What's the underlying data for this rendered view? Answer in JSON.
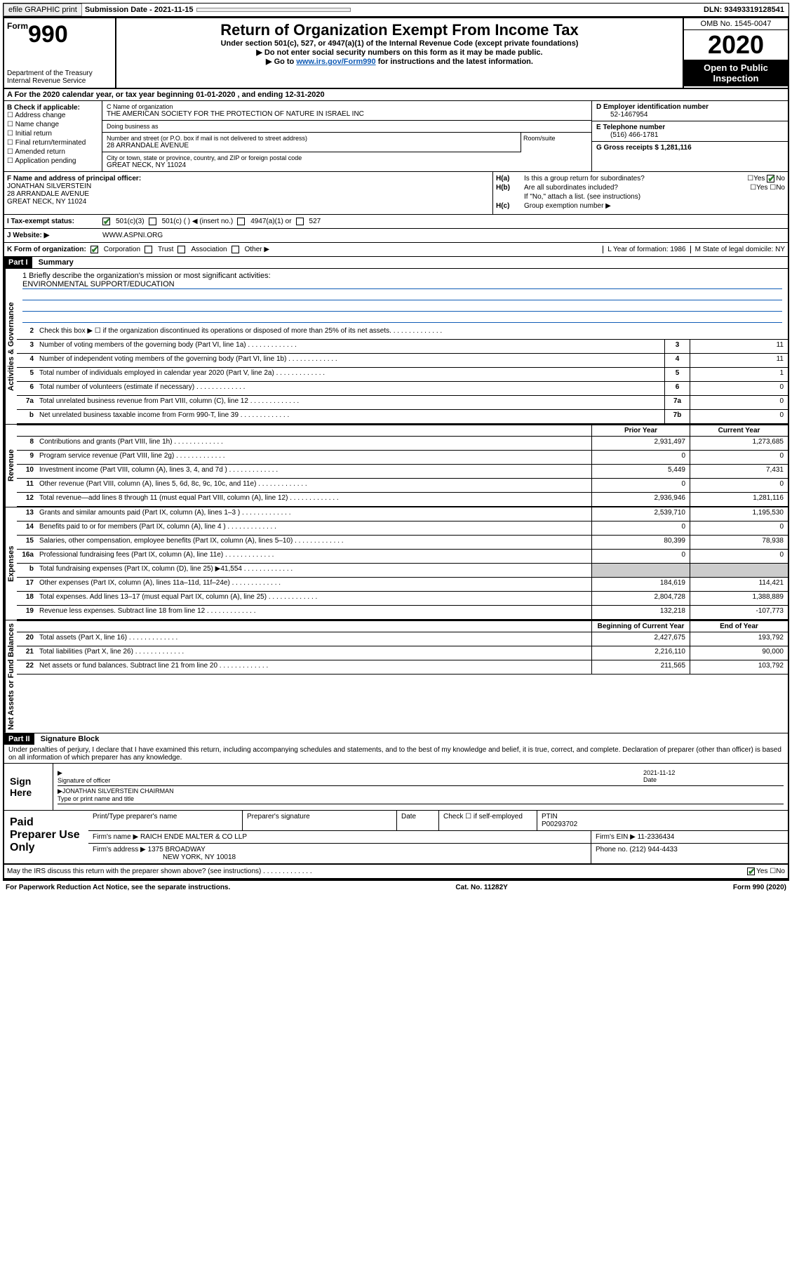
{
  "topbar": {
    "efile_label": "efile GRAPHIC print",
    "submission_label": "Submission Date - 2021-11-15",
    "dln": "DLN: 93493319128541"
  },
  "header": {
    "form_prefix": "Form",
    "form_number": "990",
    "dept": "Department of the Treasury\nInternal Revenue Service",
    "title": "Return of Organization Exempt From Income Tax",
    "subtitle": "Under section 501(c), 527, or 4947(a)(1) of the Internal Revenue Code (except private foundations)",
    "arrow1": "▶ Do not enter social security numbers on this form as it may be made public.",
    "arrow2_pre": "▶ Go to ",
    "arrow2_link": "www.irs.gov/Form990",
    "arrow2_post": " for instructions and the latest information.",
    "omb": "OMB No. 1545-0047",
    "year": "2020",
    "open_public": "Open to Public Inspection"
  },
  "row_a": "A For the 2020 calendar year, or tax year beginning 01-01-2020    , and ending 12-31-2020",
  "col_b": {
    "title": "B Check if applicable:",
    "items": [
      "Address change",
      "Name change",
      "Initial return",
      "Final return/terminated",
      "Amended return",
      "Application pending"
    ]
  },
  "col_c": {
    "name_label": "C Name of organization",
    "name": "THE AMERICAN SOCIETY FOR THE PROTECTION OF NATURE IN ISRAEL INC",
    "dba_label": "Doing business as",
    "dba": "",
    "street_label": "Number and street (or P.O. box if mail is not delivered to street address)",
    "street": "28 ARRANDALE AVENUE",
    "room_label": "Room/suite",
    "city_label": "City or town, state or province, country, and ZIP or foreign postal code",
    "city": "GREAT NECK, NY  11024"
  },
  "col_d": {
    "ein_label": "D Employer identification number",
    "ein": "52-1467954",
    "phone_label": "E Telephone number",
    "phone": "(516) 466-1781",
    "gross_label": "G Gross receipts $ 1,281,116"
  },
  "col_f": {
    "label": "F Name and address of principal officer:",
    "name": "JONATHAN SILVERSTEIN",
    "street": "28 ARRANDALE AVENUE",
    "city": "GREAT NECK, NY  11024"
  },
  "col_h": {
    "ha_label": "H(a)",
    "ha_text": "Is this a group return for subordinates?",
    "hb_label": "H(b)",
    "hb_text": "Are all subordinates included?",
    "hb_note": "If \"No,\" attach a list. (see instructions)",
    "hc_label": "H(c)",
    "hc_text": "Group exemption number ▶",
    "yes": "Yes",
    "no": "No"
  },
  "tax_exempt": {
    "label": "I    Tax-exempt status:",
    "opt1": "501(c)(3)",
    "opt2": "501(c) (  ) ◀ (insert no.)",
    "opt3": "4947(a)(1) or",
    "opt4": "527"
  },
  "website": {
    "label": "J   Website: ▶",
    "value": "WWW.ASPNI.ORG"
  },
  "row_k": {
    "label": "K Form of organization:",
    "corp": "Corporation",
    "trust": "Trust",
    "assoc": "Association",
    "other": "Other ▶",
    "l_label": "L Year of formation: 1986",
    "m_label": "M State of legal domicile: NY"
  },
  "part1": {
    "header": "Part I",
    "title": "Summary"
  },
  "mission": {
    "label": "1  Briefly describe the organization's mission or most significant activities:",
    "text": "ENVIRONMENTAL SUPPORT/EDUCATION"
  },
  "gov_lines": [
    {
      "n": "2",
      "d": "Check this box ▶ ☐ if the organization discontinued its operations or disposed of more than 25% of its net assets.",
      "bn": "",
      "v": ""
    },
    {
      "n": "3",
      "d": "Number of voting members of the governing body (Part VI, line 1a)",
      "bn": "3",
      "v": "11"
    },
    {
      "n": "4",
      "d": "Number of independent voting members of the governing body (Part VI, line 1b)",
      "bn": "4",
      "v": "11"
    },
    {
      "n": "5",
      "d": "Total number of individuals employed in calendar year 2020 (Part V, line 2a)",
      "bn": "5",
      "v": "1"
    },
    {
      "n": "6",
      "d": "Total number of volunteers (estimate if necessary)",
      "bn": "6",
      "v": "0"
    },
    {
      "n": "7a",
      "d": "Total unrelated business revenue from Part VIII, column (C), line 12",
      "bn": "7a",
      "v": "0"
    },
    {
      "n": "b",
      "d": "Net unrelated business taxable income from Form 990-T, line 39",
      "bn": "7b",
      "v": "0"
    }
  ],
  "rev_header": {
    "prior": "Prior Year",
    "current": "Current Year"
  },
  "rev_lines": [
    {
      "n": "8",
      "d": "Contributions and grants (Part VIII, line 1h)",
      "p": "2,931,497",
      "c": "1,273,685"
    },
    {
      "n": "9",
      "d": "Program service revenue (Part VIII, line 2g)",
      "p": "0",
      "c": "0"
    },
    {
      "n": "10",
      "d": "Investment income (Part VIII, column (A), lines 3, 4, and 7d )",
      "p": "5,449",
      "c": "7,431"
    },
    {
      "n": "11",
      "d": "Other revenue (Part VIII, column (A), lines 5, 6d, 8c, 9c, 10c, and 11e)",
      "p": "0",
      "c": "0"
    },
    {
      "n": "12",
      "d": "Total revenue—add lines 8 through 11 (must equal Part VIII, column (A), line 12)",
      "p": "2,936,946",
      "c": "1,281,116"
    }
  ],
  "exp_lines": [
    {
      "n": "13",
      "d": "Grants and similar amounts paid (Part IX, column (A), lines 1–3 )",
      "p": "2,539,710",
      "c": "1,195,530"
    },
    {
      "n": "14",
      "d": "Benefits paid to or for members (Part IX, column (A), line 4 )",
      "p": "0",
      "c": "0"
    },
    {
      "n": "15",
      "d": "Salaries, other compensation, employee benefits (Part IX, column (A), lines 5–10)",
      "p": "80,399",
      "c": "78,938"
    },
    {
      "n": "16a",
      "d": "Professional fundraising fees (Part IX, column (A), line 11e)",
      "p": "0",
      "c": "0"
    },
    {
      "n": "b",
      "d": "Total fundraising expenses (Part IX, column (D), line 25) ▶41,554",
      "p": "shade",
      "c": "shade"
    },
    {
      "n": "17",
      "d": "Other expenses (Part IX, column (A), lines 11a–11d, 11f–24e)",
      "p": "184,619",
      "c": "114,421"
    },
    {
      "n": "18",
      "d": "Total expenses. Add lines 13–17 (must equal Part IX, column (A), line 25)",
      "p": "2,804,728",
      "c": "1,388,889"
    },
    {
      "n": "19",
      "d": "Revenue less expenses. Subtract line 18 from line 12",
      "p": "132,218",
      "c": "-107,773"
    }
  ],
  "na_header": {
    "begin": "Beginning of Current Year",
    "end": "End of Year"
  },
  "na_lines": [
    {
      "n": "20",
      "d": "Total assets (Part X, line 16)",
      "p": "2,427,675",
      "c": "193,792"
    },
    {
      "n": "21",
      "d": "Total liabilities (Part X, line 26)",
      "p": "2,216,110",
      "c": "90,000"
    },
    {
      "n": "22",
      "d": "Net assets or fund balances. Subtract line 21 from line 20",
      "p": "211,565",
      "c": "103,792"
    }
  ],
  "part2": {
    "header": "Part II",
    "title": "Signature Block"
  },
  "perjury": "Under penalties of perjury, I declare that I have examined this return, including accompanying schedules and statements, and to the best of my knowledge and belief, it is true, correct, and complete. Declaration of preparer (other than officer) is based on all information of which preparer has any knowledge.",
  "sign": {
    "here": "Sign Here",
    "sig_label": "Signature of officer",
    "date": "2021-11-12",
    "date_label": "Date",
    "name": "JONATHAN SILVERSTEIN CHAIRMAN",
    "name_label": "Type or print name and title"
  },
  "preparer": {
    "title": "Paid Preparer Use Only",
    "col1": "Print/Type preparer's name",
    "col2": "Preparer's signature",
    "col3": "Date",
    "col4_pre": "Check ☐ if self-employed",
    "col5_label": "PTIN",
    "col5_val": "P00293702",
    "firm_name_label": "Firm's name     ▶",
    "firm_name": "RAICH ENDE MALTER & CO LLP",
    "firm_ein_label": "Firm's EIN ▶",
    "firm_ein": "11-2336434",
    "firm_addr_label": "Firm's address ▶",
    "firm_addr1": "1375 BROADWAY",
    "firm_addr2": "NEW YORK, NY  10018",
    "phone_label": "Phone no.",
    "phone": "(212) 944-4433"
  },
  "discuss": "May the IRS discuss this return with the preparer shown above? (see instructions)",
  "footer": {
    "left": "For Paperwork Reduction Act Notice, see the separate instructions.",
    "mid": "Cat. No. 11282Y",
    "right": "Form 990 (2020)"
  },
  "side_labels": {
    "gov": "Activities & Governance",
    "rev": "Revenue",
    "exp": "Expenses",
    "na": "Net Assets or Fund Balances"
  }
}
